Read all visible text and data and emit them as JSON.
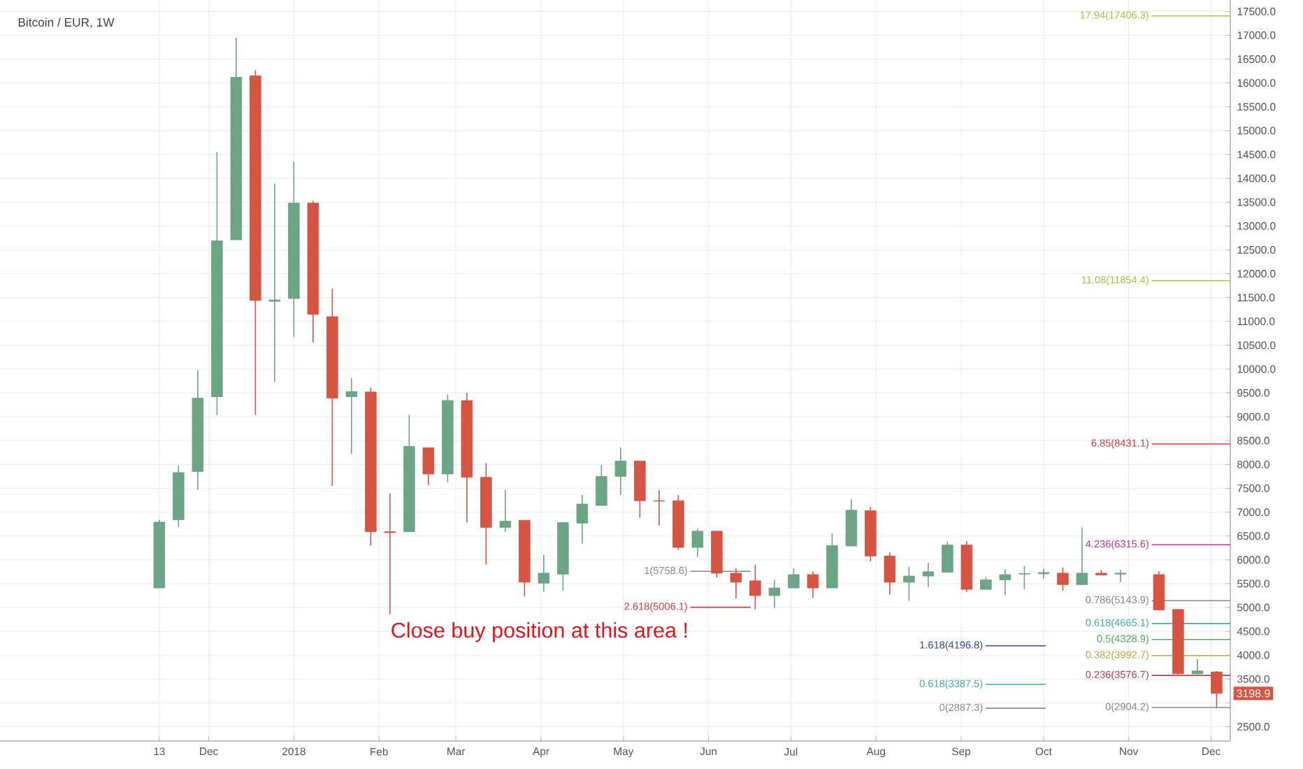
{
  "chart_data": {
    "type": "candlestick",
    "title": "Bitcoin / EUR, 1W",
    "x": [
      "2017-11-13",
      "2017-11-20",
      "2017-11-27",
      "2017-12-04",
      "2017-12-11",
      "2017-12-18",
      "2017-12-25",
      "2018-01-01",
      "2018-01-08",
      "2018-01-15",
      "2018-01-22",
      "2018-01-29",
      "2018-02-05",
      "2018-02-12",
      "2018-02-19",
      "2018-02-26",
      "2018-03-05",
      "2018-03-12",
      "2018-03-19",
      "2018-03-26",
      "2018-04-02",
      "2018-04-09",
      "2018-04-16",
      "2018-04-23",
      "2018-04-30",
      "2018-05-07",
      "2018-05-14",
      "2018-05-21",
      "2018-05-28",
      "2018-06-04",
      "2018-06-11",
      "2018-06-18",
      "2018-06-25",
      "2018-07-02",
      "2018-07-09",
      "2018-07-16",
      "2018-07-23",
      "2018-07-30",
      "2018-08-06",
      "2018-08-13",
      "2018-08-20",
      "2018-08-27",
      "2018-09-03",
      "2018-09-10",
      "2018-09-17",
      "2018-09-24",
      "2018-10-01",
      "2018-10-08",
      "2018-10-15",
      "2018-10-22",
      "2018-10-29",
      "2018-11-12",
      "2018-11-19",
      "2018-11-26",
      "2018-12-03"
    ],
    "ohlc": [
      [
        5410,
        6840,
        5410,
        6790
      ],
      [
        6840,
        7980,
        6690,
        7830
      ],
      [
        7850,
        9980,
        7470,
        9390
      ],
      [
        9420,
        14550,
        9040,
        12690
      ],
      [
        12710,
        16950,
        12710,
        16120
      ],
      [
        16150,
        16270,
        9040,
        11440
      ],
      [
        11420,
        13890,
        9730,
        11450
      ],
      [
        11480,
        14350,
        10680,
        13480
      ],
      [
        13480,
        13530,
        10560,
        11150
      ],
      [
        11100,
        11690,
        7550,
        9390
      ],
      [
        9420,
        9810,
        8220,
        9530
      ],
      [
        9520,
        9610,
        6300,
        6590
      ],
      [
        6590,
        7390,
        4860,
        6570
      ],
      [
        6590,
        9040,
        6590,
        8380
      ],
      [
        8350,
        8350,
        7570,
        7800
      ],
      [
        7800,
        9470,
        7630,
        9340
      ],
      [
        9340,
        9500,
        6790,
        7730
      ],
      [
        7730,
        8030,
        5900,
        6680
      ],
      [
        6680,
        7470,
        6590,
        6810
      ],
      [
        6830,
        6830,
        5230,
        5530
      ],
      [
        5510,
        6110,
        5330,
        5720
      ],
      [
        5700,
        6780,
        5360,
        6780
      ],
      [
        6770,
        7360,
        6340,
        7170
      ],
      [
        7140,
        7990,
        7140,
        7750
      ],
      [
        7750,
        8360,
        7360,
        8070
      ],
      [
        8070,
        8070,
        6880,
        7240
      ],
      [
        7240,
        7460,
        6720,
        7230
      ],
      [
        7240,
        7360,
        6210,
        6260
      ],
      [
        6260,
        6650,
        6060,
        6600
      ],
      [
        6600,
        6600,
        5630,
        5720
      ],
      [
        5720,
        5820,
        5190,
        5530
      ],
      [
        5560,
        5900,
        4960,
        5250
      ],
      [
        5250,
        5580,
        4990,
        5410
      ],
      [
        5410,
        5820,
        5410,
        5690
      ],
      [
        5690,
        5760,
        5200,
        5410
      ],
      [
        5410,
        6550,
        5410,
        6300
      ],
      [
        6290,
        7270,
        6290,
        7040
      ],
      [
        7030,
        7110,
        5970,
        6080
      ],
      [
        6080,
        6160,
        5270,
        5530
      ],
      [
        5530,
        5850,
        5140,
        5660
      ],
      [
        5660,
        5940,
        5430,
        5750
      ],
      [
        5740,
        6380,
        5740,
        6310
      ],
      [
        6310,
        6390,
        5330,
        5380
      ],
      [
        5380,
        5640,
        5380,
        5580
      ],
      [
        5580,
        5800,
        5260,
        5690
      ],
      [
        5700,
        5870,
        5380,
        5710
      ],
      [
        5720,
        5820,
        5610,
        5720
      ],
      [
        5720,
        5840,
        5350,
        5480
      ],
      [
        5480,
        6680,
        5480,
        5720
      ],
      [
        5720,
        5790,
        5680,
        5680
      ],
      [
        5700,
        5790,
        5530,
        5720
      ],
      [
        5690,
        5760,
        4940,
        4950
      ],
      [
        4960,
        4960,
        3600,
        3610
      ],
      [
        3610,
        3920,
        3600,
        3670
      ],
      [
        3650,
        3670,
        2890,
        3198.9
      ]
    ],
    "colors": [
      "#6ba583",
      "#6ba583",
      "#6ba583",
      "#6ba583",
      "#6ba583",
      "#d75442",
      "#6ba583",
      "#6ba583",
      "#d75442",
      "#d75442",
      "#6ba583",
      "#d75442",
      "#d75442",
      "#6ba583",
      "#d75442",
      "#6ba583",
      "#d75442",
      "#d75442",
      "#6ba583",
      "#d75442",
      "#6ba583",
      "#6ba583",
      "#6ba583",
      "#6ba583",
      "#6ba583",
      "#d75442",
      "#d75442",
      "#d75442",
      "#6ba583",
      "#d75442",
      "#d75442",
      "#d75442",
      "#6ba583",
      "#6ba583",
      "#d75442",
      "#6ba583",
      "#6ba583",
      "#d75442",
      "#d75442",
      "#6ba583",
      "#6ba583",
      "#6ba583",
      "#d75442",
      "#6ba583",
      "#6ba583",
      "#6ba583",
      "#6ba583",
      "#d75442",
      "#6ba583",
      "#d75442",
      "#6ba583",
      "#d75442",
      "#d75442",
      "#6ba583",
      "#d75442"
    ],
    "xlim": [
      "2017-09-16",
      "2018-12-08"
    ],
    "xticks": [
      {
        "value": "2017-11-13",
        "label": "13"
      },
      {
        "value": "2017-12-01",
        "label": "Dec"
      },
      {
        "value": "2018-01-01",
        "label": "2018"
      },
      {
        "value": "2018-02-01",
        "label": "Feb"
      },
      {
        "value": "2018-03-01",
        "label": "Mar"
      },
      {
        "value": "2018-04-01",
        "label": "Apr"
      },
      {
        "value": "2018-05-01",
        "label": "May"
      },
      {
        "value": "2018-06-01",
        "label": "Jun"
      },
      {
        "value": "2018-07-01",
        "label": "Jul"
      },
      {
        "value": "2018-08-01",
        "label": "Aug"
      },
      {
        "value": "2018-09-01",
        "label": "Sep"
      },
      {
        "value": "2018-10-01",
        "label": "Oct"
      },
      {
        "value": "2018-11-01",
        "label": "Nov"
      },
      {
        "value": "2018-12-01",
        "label": "Dec"
      }
    ],
    "ylim": [
      2200,
      17740
    ],
    "yticks": [
      {
        "value": 2500,
        "label": "2500.0"
      },
      {
        "value": 3000,
        "label": null
      },
      {
        "value": 3500,
        "label": "3500.0"
      },
      {
        "value": 4000,
        "label": "4000.0"
      },
      {
        "value": 4500,
        "label": "4500.0"
      },
      {
        "value": 5000,
        "label": "5000.0"
      },
      {
        "value": 5500,
        "label": "5500.0"
      },
      {
        "value": 6000,
        "label": "6000.0"
      },
      {
        "value": 6500,
        "label": "6500.0"
      },
      {
        "value": 7000,
        "label": "7000.0"
      },
      {
        "value": 7500,
        "label": "7500.0"
      },
      {
        "value": 8000,
        "label": "8000.0"
      },
      {
        "value": 8500,
        "label": "8500.0"
      },
      {
        "value": 9000,
        "label": "9000.0"
      },
      {
        "value": 9500,
        "label": "9500.0"
      },
      {
        "value": 10000,
        "label": "10000.0"
      },
      {
        "value": 10500,
        "label": "10500.0"
      },
      {
        "value": 11000,
        "label": "11000.0"
      },
      {
        "value": 11500,
        "label": "11500.0"
      },
      {
        "value": 12000,
        "label": "12000.0"
      },
      {
        "value": 12500,
        "label": "12500.0"
      },
      {
        "value": 13000,
        "label": "13000.0"
      },
      {
        "value": 13500,
        "label": "13500.0"
      },
      {
        "value": 14000,
        "label": "14000.0"
      },
      {
        "value": 14500,
        "label": "14500.0"
      },
      {
        "value": 15000,
        "label": "15000.0"
      },
      {
        "value": 15500,
        "label": "15500.0"
      },
      {
        "value": 16000,
        "label": "16000.0"
      },
      {
        "value": 16500,
        "label": "16500.0"
      },
      {
        "value": 17000,
        "label": "17000.0"
      },
      {
        "value": 17500,
        "label": "17500.0"
      }
    ],
    "grid": true,
    "ref_lines": [
      {
        "axis": "y",
        "value": 17406.3,
        "label": "17.94(17406.3)",
        "color": "#a5c43b"
      },
      {
        "axis": "y",
        "value": 11854.4,
        "label": "11.08(11854.4)",
        "color": "#a5c43b"
      },
      {
        "axis": "y",
        "value": 8431.1,
        "label": "6.85(8431.1)",
        "color": "#e0383e"
      },
      {
        "axis": "y",
        "value": 6315.6,
        "label": "4.236(6315.6)",
        "color": "#c8349b"
      },
      {
        "axis": "y",
        "value": 5758.6,
        "label": "1(5758.6)",
        "color": "#888888"
      },
      {
        "axis": "y",
        "value": 5143.9,
        "label": "0.786(5143.9)",
        "color": "#888888"
      },
      {
        "axis": "y",
        "value": 5006.1,
        "label": "2.618(5006.1)",
        "color": "#e0383e"
      },
      {
        "axis": "y",
        "value": 4665.1,
        "label": "0.618(4665.1)",
        "color": "#3ab4a4"
      },
      {
        "axis": "y",
        "value": 4328.9,
        "label": "0.5(4328.9)",
        "color": "#4caf50"
      },
      {
        "axis": "y",
        "value": 4196.8,
        "label": "1.618(4196.8)",
        "color": "#2f4bb0"
      },
      {
        "axis": "y",
        "value": 3992.7,
        "label": "0.382(3992.7)",
        "color": "#b0b040"
      },
      {
        "axis": "y",
        "value": 3576.7,
        "label": "0.236(3576.7)",
        "color": "#d03c4a"
      },
      {
        "axis": "y",
        "value": 3387.5,
        "label": "0.618(3387.5)",
        "color": "#3ab4a4"
      },
      {
        "axis": "y",
        "value": 2904.2,
        "label": "0(2904.2)",
        "color": "#888888"
      },
      {
        "axis": "y",
        "value": 2887.3,
        "label": "0(2887.3)",
        "color": "#888888"
      }
    ],
    "annotations": [
      "Close buy position at this area !",
      {
        "text": "3198.9",
        "x": "2018-12-03",
        "y": 3198.9
      }
    ]
  }
}
